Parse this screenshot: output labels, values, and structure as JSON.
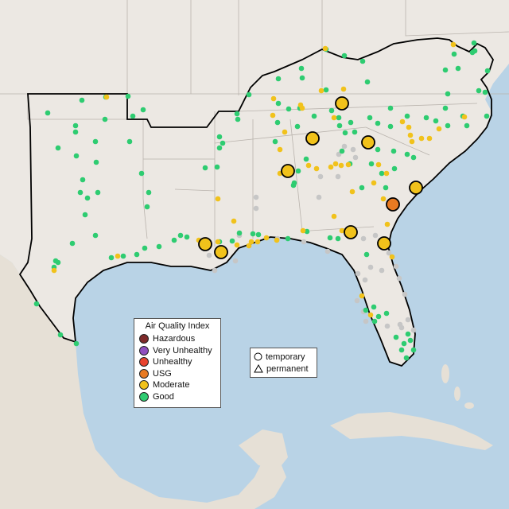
{
  "legend": {
    "title": "Air Quality Index",
    "items": [
      {
        "label": "Hazardous",
        "color": "#7e2a2a"
      },
      {
        "label": "Very Unhealthy",
        "color": "#8e4fbf"
      },
      {
        "label": "Unhealthy",
        "color": "#e8432e"
      },
      {
        "label": "USG",
        "color": "#e87a22"
      },
      {
        "label": "Moderate",
        "color": "#f1c21b"
      },
      {
        "label": "Good",
        "color": "#2ecc71"
      }
    ]
  },
  "shape_legend": {
    "items": [
      {
        "label": "temporary",
        "shape": "circle-icon"
      },
      {
        "label": "permanent",
        "shape": "triangle-icon"
      }
    ]
  },
  "colors": {
    "ocean": "#b9d3e6",
    "land": "#ece8e3",
    "no_data": "#c6c6c6",
    "good": "#2ecc71",
    "moderate": "#f1c21b",
    "usg": "#e87a22"
  }
}
